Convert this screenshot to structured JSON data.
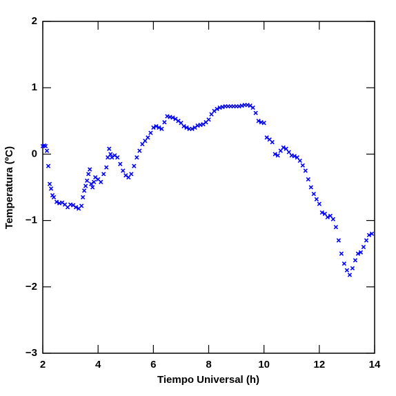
{
  "chart_data": {
    "type": "scatter",
    "xlabel": "Tiempo Universal (h)",
    "ylabel": "Temperatura (ºC)",
    "color": "#0000ff",
    "xlim": [
      2,
      14
    ],
    "xticks": [
      2,
      4,
      6,
      8,
      10,
      12,
      14
    ],
    "ylim": [
      -3,
      2
    ],
    "yticks": [
      {
        "value": -3,
        "label": "−3"
      },
      {
        "value": -2,
        "label": "−2"
      },
      {
        "value": -1,
        "label": "−1"
      },
      0,
      1,
      2
    ],
    "x": [
      2.0,
      2.05,
      2.1,
      2.15,
      2.2,
      2.25,
      2.3,
      2.35,
      2.4,
      2.5,
      2.6,
      2.7,
      2.8,
      2.9,
      3.0,
      3.1,
      3.2,
      3.3,
      3.4,
      3.45,
      3.5,
      3.55,
      3.6,
      3.65,
      3.7,
      3.75,
      3.8,
      3.85,
      3.9,
      4.0,
      4.1,
      4.2,
      4.3,
      4.35,
      4.4,
      4.45,
      4.5,
      4.6,
      4.7,
      4.8,
      4.9,
      5.0,
      5.1,
      5.2,
      5.3,
      5.4,
      5.5,
      5.6,
      5.7,
      5.8,
      5.9,
      6.0,
      6.1,
      6.2,
      6.3,
      6.4,
      6.5,
      6.6,
      6.7,
      6.8,
      6.9,
      7.0,
      7.1,
      7.2,
      7.3,
      7.4,
      7.5,
      7.6,
      7.7,
      7.8,
      7.9,
      8.0,
      8.1,
      8.2,
      8.3,
      8.4,
      8.5,
      8.6,
      8.7,
      8.8,
      8.9,
      9.0,
      9.1,
      9.2,
      9.3,
      9.4,
      9.5,
      9.6,
      9.7,
      9.8,
      9.9,
      10.0,
      10.1,
      10.2,
      10.3,
      10.4,
      10.5,
      10.6,
      10.7,
      10.8,
      10.9,
      11.0,
      11.1,
      11.2,
      11.3,
      11.4,
      11.5,
      11.6,
      11.7,
      11.8,
      11.9,
      12.0,
      12.1,
      12.2,
      12.3,
      12.4,
      12.5,
      12.6,
      12.7,
      12.8,
      12.9,
      13.0,
      13.1,
      13.2,
      13.3,
      13.4,
      13.5,
      13.6,
      13.7,
      13.8,
      13.9
    ],
    "values": [
      0.12,
      0.13,
      0.12,
      0.05,
      -0.18,
      -0.45,
      -0.52,
      -0.62,
      -0.65,
      -0.72,
      -0.74,
      -0.73,
      -0.76,
      -0.8,
      -0.76,
      -0.77,
      -0.8,
      -0.82,
      -0.78,
      -0.65,
      -0.55,
      -0.48,
      -0.4,
      -0.3,
      -0.23,
      -0.45,
      -0.5,
      -0.42,
      -0.35,
      -0.38,
      -0.42,
      -0.3,
      -0.2,
      -0.05,
      0.08,
      0.0,
      -0.05,
      -0.02,
      -0.05,
      -0.15,
      -0.25,
      -0.32,
      -0.35,
      -0.3,
      -0.18,
      -0.05,
      0.05,
      0.15,
      0.2,
      0.25,
      0.32,
      0.4,
      0.42,
      0.4,
      0.38,
      0.48,
      0.57,
      0.56,
      0.55,
      0.53,
      0.5,
      0.47,
      0.42,
      0.4,
      0.38,
      0.38,
      0.4,
      0.43,
      0.44,
      0.45,
      0.48,
      0.52,
      0.6,
      0.65,
      0.68,
      0.7,
      0.71,
      0.72,
      0.72,
      0.72,
      0.72,
      0.72,
      0.72,
      0.73,
      0.74,
      0.74,
      0.73,
      0.7,
      0.62,
      0.5,
      0.48,
      0.47,
      0.25,
      0.22,
      0.18,
      0.0,
      -0.02,
      0.05,
      0.1,
      0.08,
      0.03,
      -0.02,
      -0.03,
      -0.05,
      -0.1,
      -0.17,
      -0.25,
      -0.38,
      -0.5,
      -0.6,
      -0.68,
      -0.75,
      -0.88,
      -0.9,
      -0.95,
      -0.93,
      -0.98,
      -1.1,
      -1.3,
      -1.5,
      -1.65,
      -1.75,
      -1.82,
      -1.72,
      -1.6,
      -1.5,
      -1.48,
      -1.4,
      -1.3,
      -1.22,
      -1.2
    ]
  }
}
